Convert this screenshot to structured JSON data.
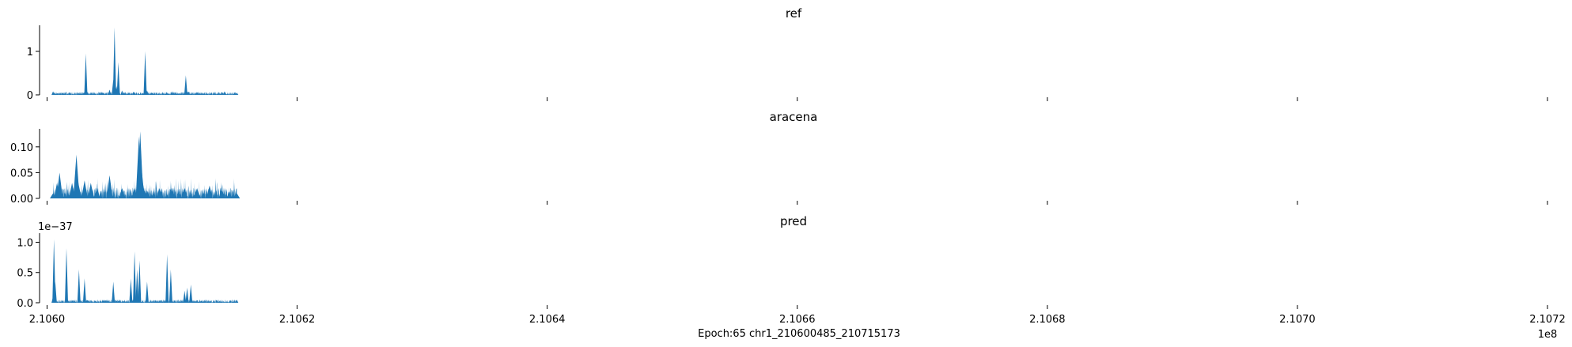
{
  "figure": {
    "xlabel": "Epoch:65 chr1_210600485_210715173",
    "x_offset_label": "1e8"
  },
  "style": {
    "fill_color": "#1f77b4",
    "axis_color": "#000000"
  },
  "chart_data": [
    {
      "type": "area",
      "title": "ref",
      "xlim": [
        210599400,
        210720000
      ],
      "ylim": [
        0,
        1.6
      ],
      "yticks": [
        0,
        1
      ],
      "ytick_labels": [
        "0",
        "1"
      ],
      "y_offset_label": "",
      "x": [
        210600485,
        210603000,
        210603100,
        210603200,
        210605000,
        210605300,
        210605400,
        210605550,
        210605700,
        210606000,
        210607800,
        210607850,
        210608000,
        210610000,
        210611000,
        210611100,
        210611200,
        210612000,
        210614000,
        210614200,
        210615173
      ],
      "y": [
        0.08,
        0.06,
        0.95,
        0.08,
        0.12,
        0.35,
        1.55,
        0.2,
        0.75,
        0.1,
        0.08,
        1.0,
        0.1,
        0.08,
        0.06,
        0.45,
        0.08,
        0.06,
        0.06,
        0.08,
        0.05
      ]
    },
    {
      "type": "area",
      "title": "aracena",
      "xlim": [
        210599400,
        210720000
      ],
      "ylim": [
        0,
        0.135
      ],
      "yticks": [
        0,
        0.05,
        0.1
      ],
      "ytick_labels": [
        "0.00",
        "0.05",
        "0.10"
      ],
      "y_offset_label": "",
      "x": [
        210600485,
        210600800,
        210601000,
        210602000,
        210602350,
        210602500,
        210603000,
        210603500,
        210604000,
        210605000,
        210606000,
        210607000,
        210607350,
        210607450,
        210607550,
        210607650,
        210607800,
        210608000,
        210609000,
        210610000,
        210611000,
        210612000,
        210613000,
        210614000,
        210615173
      ],
      "y": [
        0.01,
        0.03,
        0.05,
        0.03,
        0.085,
        0.03,
        0.035,
        0.03,
        0.02,
        0.045,
        0.02,
        0.02,
        0.12,
        0.13,
        0.06,
        0.03,
        0.015,
        0.015,
        0.02,
        0.02,
        0.02,
        0.02,
        0.025,
        0.015,
        0.01
      ]
    },
    {
      "type": "area",
      "title": "pred",
      "xlim": [
        210599400,
        210720000
      ],
      "ylim": [
        0,
        1.15
      ],
      "yticks": [
        0,
        0.5,
        1
      ],
      "ytick_labels": [
        "0.0",
        "0.5",
        "1.0"
      ],
      "y_offset_label": "1e−37",
      "x": [
        210600485,
        210600550,
        210600650,
        210601550,
        210601650,
        210602550,
        210603000,
        210605300,
        210606700,
        210607000,
        210607200,
        210607400,
        210608000,
        210609600,
        210609900,
        210611000,
        210611200,
        210611500,
        210615173
      ],
      "y": [
        0.1,
        1.05,
        0.35,
        0.9,
        0.05,
        0.55,
        0.4,
        0.35,
        0.4,
        0.85,
        0.55,
        0.7,
        0.35,
        0.8,
        0.55,
        0.2,
        0.25,
        0.3,
        0.05
      ]
    }
  ],
  "x_axis": {
    "ticks": [
      210600000,
      210620000,
      210640000,
      210660000,
      210680000,
      210700000,
      210720000
    ],
    "tick_labels": [
      "2.1060",
      "2.1062",
      "2.1064",
      "2.1066",
      "2.1068",
      "2.1070",
      "2.1072"
    ]
  }
}
